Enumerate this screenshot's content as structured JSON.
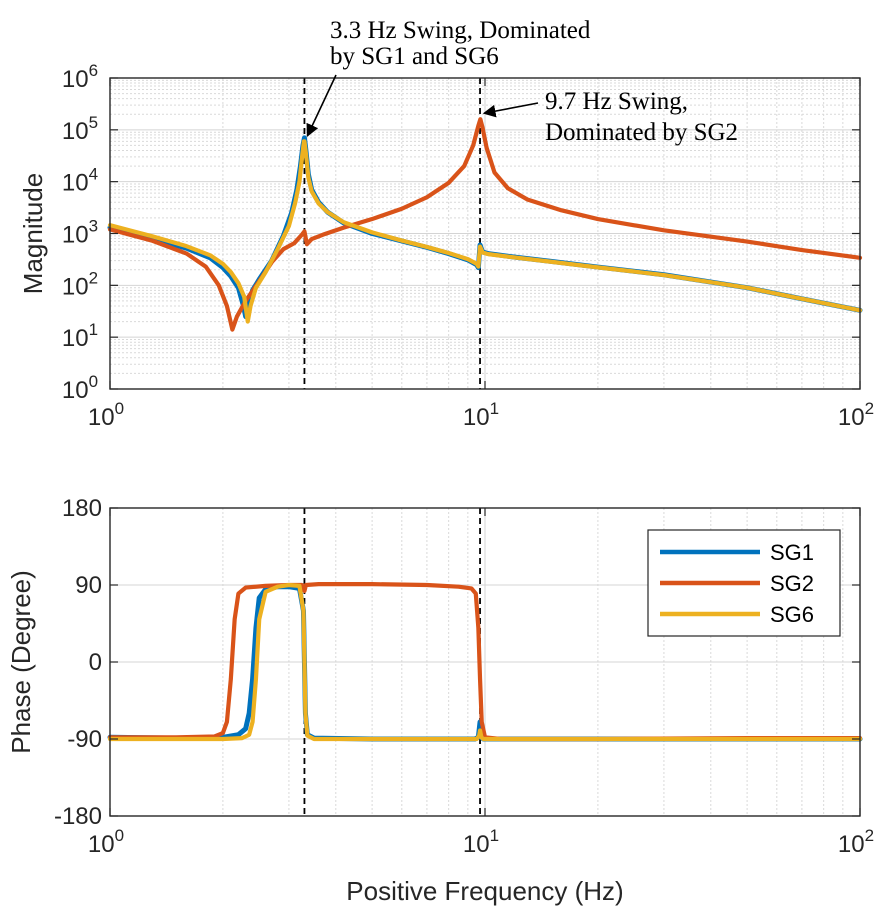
{
  "chart_data": [
    {
      "type": "line",
      "xscale": "log",
      "yscale": "log",
      "xlim": [
        1,
        100
      ],
      "ylim": [
        1,
        1000000
      ],
      "xticks": [
        1,
        10,
        100
      ],
      "xtick_labels": [
        {
          "base": "10",
          "exp": "0"
        },
        {
          "base": "10",
          "exp": "1"
        },
        {
          "base": "10",
          "exp": "2"
        }
      ],
      "yticks": [
        1,
        10,
        100,
        1000,
        10000,
        100000,
        1000000
      ],
      "ytick_labels": [
        {
          "base": "10",
          "exp": "0"
        },
        {
          "base": "10",
          "exp": "1"
        },
        {
          "base": "10",
          "exp": "2"
        },
        {
          "base": "10",
          "exp": "3"
        },
        {
          "base": "10",
          "exp": "4"
        },
        {
          "base": "10",
          "exp": "5"
        },
        {
          "base": "10",
          "exp": "6"
        }
      ],
      "ylabel": "Magnitude",
      "xlabel": "",
      "grid": true,
      "vlines": [
        3.3,
        9.7
      ],
      "annotations": [
        {
          "lines": [
            "3.3 Hz Swing, Dominated",
            "by SG1 and SG6"
          ],
          "target": [
            3.3,
            70000
          ]
        },
        {
          "lines": [
            "9.7 Hz Swing,",
            "Dominated by SG2"
          ],
          "target": [
            9.7,
            160000
          ]
        }
      ],
      "series": [
        {
          "name": "SG1",
          "color": "#0072BD",
          "points": [
            [
              1,
              1300
            ],
            [
              1.3,
              800
            ],
            [
              1.6,
              520
            ],
            [
              1.85,
              340
            ],
            [
              2.0,
              220
            ],
            [
              2.1,
              150
            ],
            [
              2.2,
              90
            ],
            [
              2.27,
              40
            ],
            [
              2.3,
              25
            ],
            [
              2.33,
              40
            ],
            [
              2.4,
              80
            ],
            [
              2.5,
              130
            ],
            [
              2.7,
              300
            ],
            [
              2.9,
              900
            ],
            [
              3.05,
              2500
            ],
            [
              3.15,
              7000
            ],
            [
              3.22,
              20000
            ],
            [
              3.27,
              50000
            ],
            [
              3.3,
              70000
            ],
            [
              3.33,
              40000
            ],
            [
              3.38,
              14000
            ],
            [
              3.45,
              7000
            ],
            [
              3.6,
              4000
            ],
            [
              3.8,
              2600
            ],
            [
              4.2,
              1600
            ],
            [
              5,
              1000
            ],
            [
              6,
              720
            ],
            [
              7,
              540
            ],
            [
              8,
              410
            ],
            [
              9,
              310
            ],
            [
              9.5,
              250
            ],
            [
              9.6,
              220
            ],
            [
              9.7,
              600
            ],
            [
              9.85,
              440
            ],
            [
              10.2,
              410
            ],
            [
              12,
              350
            ],
            [
              15,
              290
            ],
            [
              20,
              225
            ],
            [
              30,
              160
            ],
            [
              50,
              90
            ],
            [
              70,
              55
            ],
            [
              100,
              33
            ]
          ]
        },
        {
          "name": "SG2",
          "color": "#D95319",
          "points": [
            [
              1,
              1200
            ],
            [
              1.3,
              720
            ],
            [
              1.6,
              410
            ],
            [
              1.8,
              230
            ],
            [
              1.95,
              100
            ],
            [
              2.05,
              40
            ],
            [
              2.12,
              14
            ],
            [
              2.18,
              25
            ],
            [
              2.3,
              50
            ],
            [
              2.5,
              120
            ],
            [
              2.7,
              280
            ],
            [
              2.9,
              500
            ],
            [
              3.1,
              650
            ],
            [
              3.25,
              950
            ],
            [
              3.3,
              1100
            ],
            [
              3.35,
              620
            ],
            [
              3.45,
              780
            ],
            [
              3.7,
              950
            ],
            [
              4.2,
              1300
            ],
            [
              5,
              1900
            ],
            [
              6,
              3000
            ],
            [
              7,
              5000
            ],
            [
              8,
              9500
            ],
            [
              8.8,
              20000
            ],
            [
              9.3,
              50000
            ],
            [
              9.6,
              120000
            ],
            [
              9.72,
              160000
            ],
            [
              9.85,
              110000
            ],
            [
              10.1,
              45000
            ],
            [
              10.6,
              15000
            ],
            [
              11.5,
              7500
            ],
            [
              13,
              4500
            ],
            [
              16,
              2800
            ],
            [
              20,
              1900
            ],
            [
              30,
              1150
            ],
            [
              50,
              700
            ],
            [
              70,
              480
            ],
            [
              100,
              340
            ]
          ]
        },
        {
          "name": "SG6",
          "color": "#EDB120",
          "points": [
            [
              1,
              1450
            ],
            [
              1.3,
              880
            ],
            [
              1.6,
              570
            ],
            [
              1.85,
              380
            ],
            [
              2.0,
              260
            ],
            [
              2.1,
              180
            ],
            [
              2.2,
              110
            ],
            [
              2.28,
              60
            ],
            [
              2.33,
              20
            ],
            [
              2.37,
              40
            ],
            [
              2.45,
              90
            ],
            [
              2.6,
              180
            ],
            [
              2.8,
              500
            ],
            [
              3.0,
              1400
            ],
            [
              3.12,
              4000
            ],
            [
              3.2,
              10000
            ],
            [
              3.26,
              35000
            ],
            [
              3.29,
              60000
            ],
            [
              3.3,
              60000
            ],
            [
              3.33,
              35000
            ],
            [
              3.38,
              12000
            ],
            [
              3.45,
              6500
            ],
            [
              3.6,
              3800
            ],
            [
              3.8,
              2600
            ],
            [
              4.2,
              1650
            ],
            [
              5,
              1050
            ],
            [
              6,
              730
            ],
            [
              7,
              550
            ],
            [
              8,
              420
            ],
            [
              9,
              320
            ],
            [
              9.5,
              260
            ],
            [
              9.6,
              230
            ],
            [
              9.7,
              560
            ],
            [
              9.85,
              430
            ],
            [
              10.2,
              400
            ],
            [
              12,
              345
            ],
            [
              15,
              285
            ],
            [
              20,
              222
            ],
            [
              30,
              158
            ],
            [
              50,
              90
            ],
            [
              70,
              55
            ],
            [
              100,
              33
            ]
          ]
        }
      ]
    },
    {
      "type": "line",
      "xscale": "log",
      "yscale": "linear",
      "xlim": [
        1,
        100
      ],
      "ylim": [
        -180,
        180
      ],
      "xticks": [
        1,
        10,
        100
      ],
      "xtick_labels": [
        {
          "base": "10",
          "exp": "0"
        },
        {
          "base": "10",
          "exp": "1"
        },
        {
          "base": "10",
          "exp": "2"
        }
      ],
      "yticks": [
        -180,
        -90,
        0,
        90,
        180
      ],
      "ytick_labels": [
        "-180",
        "-90",
        "0",
        "90",
        "180"
      ],
      "ylabel": "Phase (Degree)",
      "xlabel": "Positive Frequency (Hz)",
      "grid": true,
      "vlines": [
        3.3,
        9.7
      ],
      "legend": {
        "position": "top-right",
        "entries": [
          "SG1",
          "SG2",
          "SG6"
        ]
      },
      "series": [
        {
          "name": "SG1",
          "color": "#0072BD",
          "points": [
            [
              1,
              -88
            ],
            [
              1.5,
              -89
            ],
            [
              2.0,
              -88
            ],
            [
              2.2,
              -85
            ],
            [
              2.3,
              -78
            ],
            [
              2.35,
              -60
            ],
            [
              2.4,
              -20
            ],
            [
              2.45,
              40
            ],
            [
              2.5,
              75
            ],
            [
              2.6,
              85
            ],
            [
              2.8,
              88
            ],
            [
              3.0,
              88
            ],
            [
              3.2,
              86
            ],
            [
              3.28,
              60
            ],
            [
              3.3,
              0
            ],
            [
              3.32,
              -60
            ],
            [
              3.36,
              -85
            ],
            [
              3.5,
              -89
            ],
            [
              5,
              -90
            ],
            [
              8,
              -90
            ],
            [
              9.4,
              -90
            ],
            [
              9.6,
              -88
            ],
            [
              9.7,
              -70
            ],
            [
              9.75,
              -88
            ],
            [
              9.9,
              -90
            ],
            [
              20,
              -90
            ],
            [
              50,
              -90
            ],
            [
              100,
              -90
            ]
          ]
        },
        {
          "name": "SG2",
          "color": "#D95319",
          "points": [
            [
              1,
              -88
            ],
            [
              1.5,
              -88
            ],
            [
              1.9,
              -87
            ],
            [
              2.0,
              -83
            ],
            [
              2.05,
              -70
            ],
            [
              2.1,
              -20
            ],
            [
              2.15,
              50
            ],
            [
              2.2,
              80
            ],
            [
              2.3,
              87
            ],
            [
              2.6,
              89
            ],
            [
              3.0,
              90
            ],
            [
              3.25,
              90
            ],
            [
              3.3,
              83
            ],
            [
              3.33,
              90
            ],
            [
              3.6,
              91
            ],
            [
              5,
              91
            ],
            [
              7,
              90
            ],
            [
              8.5,
              88
            ],
            [
              9.2,
              86
            ],
            [
              9.45,
              80
            ],
            [
              9.6,
              40
            ],
            [
              9.7,
              -20
            ],
            [
              9.8,
              -70
            ],
            [
              10,
              -88
            ],
            [
              11,
              -90
            ],
            [
              20,
              -90
            ],
            [
              50,
              -89
            ],
            [
              100,
              -89
            ]
          ]
        },
        {
          "name": "SG6",
          "color": "#EDB120",
          "points": [
            [
              1,
              -90
            ],
            [
              1.5,
              -90
            ],
            [
              2.0,
              -90
            ],
            [
              2.25,
              -89
            ],
            [
              2.35,
              -85
            ],
            [
              2.4,
              -70
            ],
            [
              2.45,
              -20
            ],
            [
              2.5,
              50
            ],
            [
              2.6,
              82
            ],
            [
              2.8,
              88
            ],
            [
              3.0,
              90
            ],
            [
              3.2,
              89
            ],
            [
              3.28,
              60
            ],
            [
              3.3,
              0
            ],
            [
              3.32,
              -60
            ],
            [
              3.36,
              -86
            ],
            [
              3.5,
              -90
            ],
            [
              5,
              -90
            ],
            [
              8,
              -90
            ],
            [
              9.5,
              -90
            ],
            [
              9.65,
              -86
            ],
            [
              9.7,
              -80
            ],
            [
              9.78,
              -88
            ],
            [
              9.9,
              -90
            ],
            [
              20,
              -90
            ],
            [
              50,
              -90
            ],
            [
              100,
              -90
            ]
          ]
        }
      ]
    }
  ]
}
